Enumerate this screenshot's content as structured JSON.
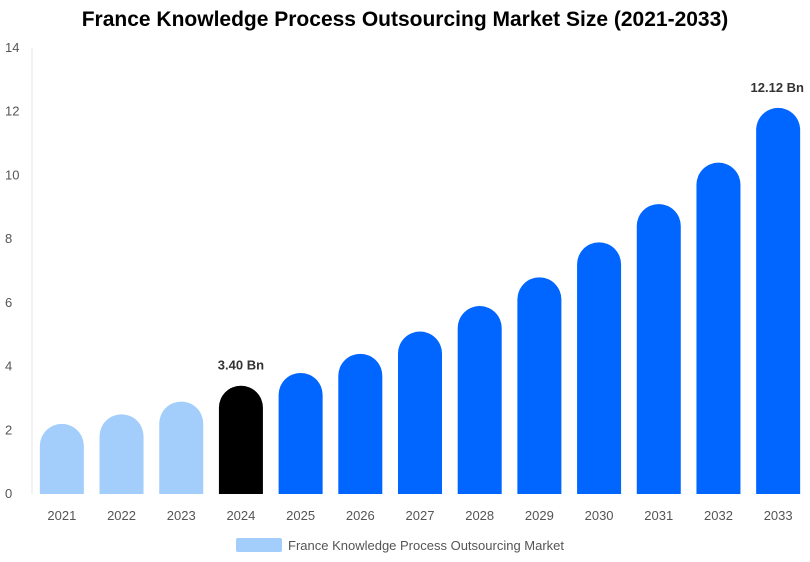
{
  "chart_data": {
    "type": "bar",
    "title": "France Knowledge Process Outsourcing Market Size (2021-2033)",
    "xlabel": "",
    "ylabel": "",
    "ylim": [
      0,
      14
    ],
    "yticks": [
      0,
      2,
      4,
      6,
      8,
      10,
      12,
      14
    ],
    "categories": [
      "2021",
      "2022",
      "2023",
      "2024",
      "2025",
      "2026",
      "2027",
      "2028",
      "2029",
      "2030",
      "2031",
      "2032",
      "2033"
    ],
    "series": [
      {
        "name": "France Knowledge Process Outsourcing Market",
        "values": [
          2.2,
          2.5,
          2.9,
          3.4,
          3.8,
          4.4,
          5.1,
          5.9,
          6.8,
          7.9,
          9.1,
          10.4,
          12.12
        ]
      }
    ],
    "annotations": [
      {
        "category": "2024",
        "text": "3.40 Bn"
      },
      {
        "category": "2033",
        "text": "12.12 Bn"
      }
    ],
    "colors": {
      "historical": "#a3cdfb",
      "current": "#000000",
      "forecast": "#0066ff",
      "legend": "#a3cdfb"
    },
    "highlight_category": "2024",
    "grid": false,
    "legend_position": "bottom"
  }
}
